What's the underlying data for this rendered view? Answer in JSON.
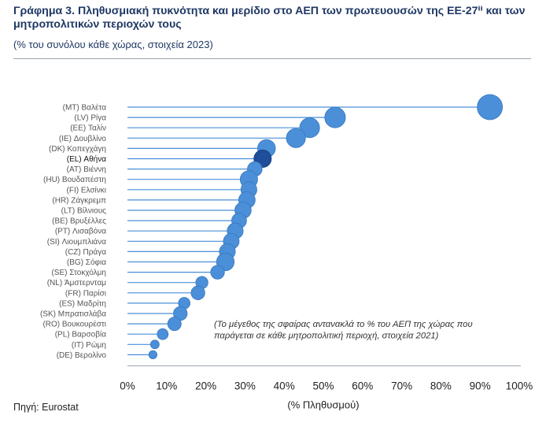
{
  "title": "Γράφημα 3. Πληθυσμιακή πυκνότητα και μερίδιο στο ΑΕΠ των πρωτευουσών της ΕΕ-27ⁱⁱ και των μητροπολιτικών περιοχών τους",
  "subtitle": "(% του συνόλου κάθε χώρας, στοιχεία 2023)",
  "source": "Πηγή: Eurostat",
  "colors": {
    "bubble": "#4a8fd8",
    "bubble_highlight": "#1f4e9a",
    "line": "#4a8fd8",
    "axis": "#9aa3ad"
  },
  "chart_data": {
    "type": "scatter",
    "xlabel": "(% Πληθυσμού)",
    "xlim": [
      0,
      100
    ],
    "xticks": [
      "0%",
      "10%",
      "20%",
      "30%",
      "40%",
      "50%",
      "60%",
      "70%",
      "80%",
      "90%",
      "100%"
    ],
    "note_lines": [
      "(Το μέγεθος της σφαίρας αντανακλά το % του ΑΕΠ της χώρας που",
      "παράγεται σε κάθε μητροπολιτική περιοχή, στοιχεία 2021)"
    ],
    "highlight": "(EL) Αθήνα",
    "categories": [
      "(MT) Βαλέτα",
      "(LV) Ρίγα",
      "(EE) Ταλίν",
      "(IE) Δουβλίνο",
      "(DK) Κοπεγχάγη",
      "(EL) Αθήνα",
      "(AT) Βιέννη",
      "(HU) Βουδαπέστη",
      "(FI) Ελσίνκι",
      "(HR) Ζάγκρεμπ",
      "(LT) Βίλνιους",
      "(BE) Βρυξέλλες",
      "(PT) Λισαβόνα",
      "(SI) Λιουμπλιάνα",
      "(CZ) Πράγα",
      "(BG) Σόφια",
      "(SE) Στοκχόλμη",
      "(NL) Άμστερνταμ",
      "(FR) Παρίσι",
      "(ES) Μαδρίτη",
      "(SK) Μπρατισλάβα",
      "(RO) Βουκουρέστι",
      "(PL) Βαρσοβία",
      "(IT) Ρώμη",
      "(DE) Βερολίνο"
    ],
    "population_pct": [
      92.5,
      53,
      46.5,
      43,
      35.5,
      34.5,
      32.5,
      31,
      31,
      30.5,
      29.5,
      28.5,
      27.5,
      26.5,
      25.5,
      25,
      23,
      19,
      18,
      14.5,
      13.5,
      12,
      9,
      7,
      6.5
    ],
    "gdp_share_pct": [
      95,
      60,
      55,
      50,
      42,
      40,
      26,
      40,
      32,
      35,
      34,
      27,
      32,
      31,
      32,
      41,
      22,
      16,
      22,
      14,
      22,
      21,
      12,
      6,
      5
    ]
  }
}
